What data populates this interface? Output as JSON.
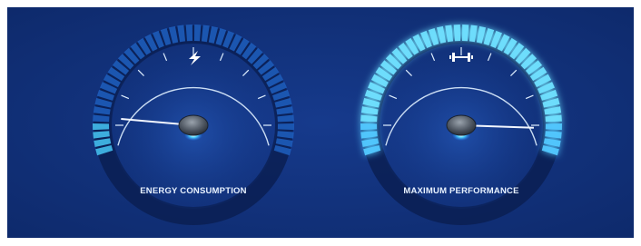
{
  "gauges": [
    {
      "label": "ENERGY CONSUMPTION"
    },
    {
      "label": "MAXIMUM PERFORMANCE"
    }
  ]
}
